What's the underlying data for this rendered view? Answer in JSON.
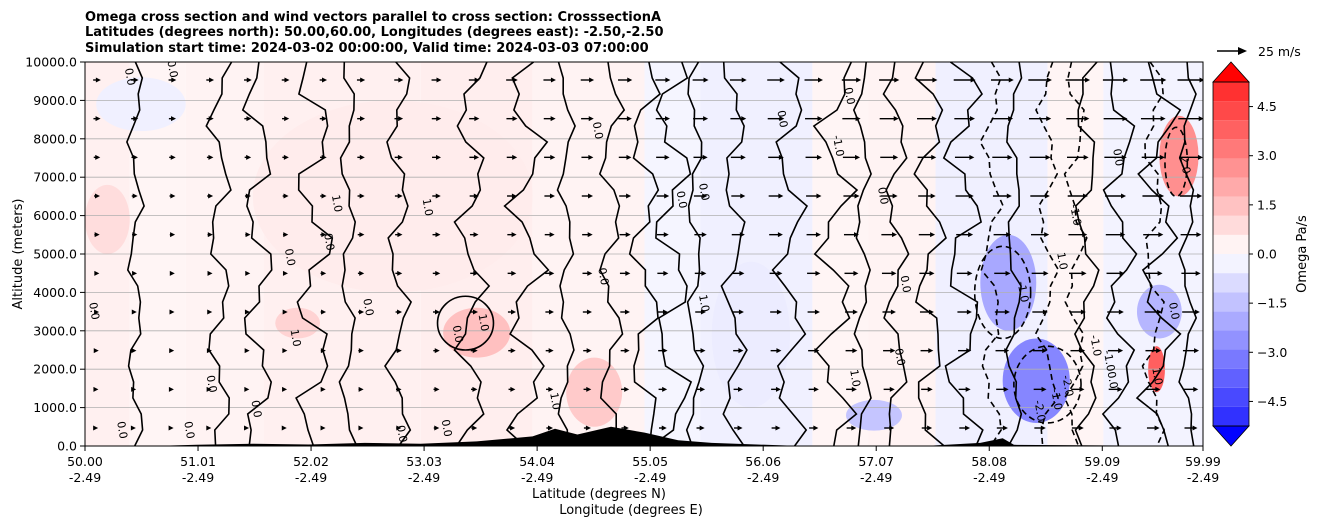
{
  "chart_data": {
    "type": "heatmap",
    "title_lines": [
      "Omega cross section and wind vectors parallel to cross section: CrosssectionA",
      "Latitudes (degrees north): 50.00,60.00, Longitudes (degrees east): -2.50,-2.50",
      "Simulation start time: 2024-03-02 00:00:00, Valid time: 2024-03-03 07:00:00"
    ],
    "xlabel_line1": "Latitude (degrees N)",
    "xlabel_line2": "Longitude (degrees E)",
    "ylabel": "Altitude (meters)",
    "colorbar_label": "Omega Pa/s",
    "quiver_key": "25 m/s",
    "xlim": [
      50.0,
      59.99
    ],
    "ylim": [
      0,
      10000
    ],
    "x_ticks": [
      {
        "lat": "50.00",
        "lon": "-2.49",
        "value": 50.0
      },
      {
        "lat": "51.01",
        "lon": "-2.49",
        "value": 51.01
      },
      {
        "lat": "52.02",
        "lon": "-2.49",
        "value": 52.02
      },
      {
        "lat": "53.03",
        "lon": "-2.49",
        "value": 53.03
      },
      {
        "lat": "54.04",
        "lon": "-2.49",
        "value": 54.04
      },
      {
        "lat": "55.05",
        "lon": "-2.49",
        "value": 55.05
      },
      {
        "lat": "56.06",
        "lon": "-2.49",
        "value": 56.06
      },
      {
        "lat": "57.07",
        "lon": "-2.49",
        "value": 57.07
      },
      {
        "lat": "58.08",
        "lon": "-2.49",
        "value": 58.08
      },
      {
        "lat": "59.09",
        "lon": "-2.49",
        "value": 59.09
      },
      {
        "lat": "59.99",
        "lon": "-2.49",
        "value": 59.99
      }
    ],
    "y_ticks": [
      {
        "label": "0.0",
        "value": 0
      },
      {
        "label": "1000.0",
        "value": 1000
      },
      {
        "label": "2000.0",
        "value": 2000
      },
      {
        "label": "3000.0",
        "value": 3000
      },
      {
        "label": "4000.0",
        "value": 4000
      },
      {
        "label": "5000.0",
        "value": 5000
      },
      {
        "label": "6000.0",
        "value": 6000
      },
      {
        "label": "7000.0",
        "value": 7000
      },
      {
        "label": "8000.0",
        "value": 8000
      },
      {
        "label": "9000.0",
        "value": 9000
      },
      {
        "label": "10000.0",
        "value": 10000
      }
    ],
    "colorbar_range": [
      -5.25,
      5.25
    ],
    "colorbar_ticks": [
      {
        "label": "4.5",
        "value": 4.5
      },
      {
        "label": "3.0",
        "value": 3.0
      },
      {
        "label": "1.5",
        "value": 1.5
      },
      {
        "label": "0.0",
        "value": 0.0
      },
      {
        "label": "−1.5",
        "value": -1.5
      },
      {
        "label": "−3.0",
        "value": -3.0
      },
      {
        "label": "−4.5",
        "value": -4.5
      }
    ],
    "colorbar_levels": [
      -4.5,
      -4.0,
      -3.5,
      -3.0,
      -2.5,
      -2.0,
      -1.5,
      -1.0,
      -0.5,
      0.0,
      0.5,
      1.0,
      1.5,
      2.0,
      2.5,
      3.0,
      3.5,
      4.0,
      4.5
    ],
    "omega_regions": [
      {
        "x": [
          51.5,
          54.0
        ],
        "y": [
          4000,
          9000
        ],
        "v": 0.4
      },
      {
        "x": [
          53.2,
          53.8
        ],
        "y": [
          2300,
          3600
        ],
        "v": 1.3
      },
      {
        "x": [
          54.3,
          54.8
        ],
        "y": [
          500,
          2300
        ],
        "v": 1.1
      },
      {
        "x": [
          50.0,
          50.4
        ],
        "y": [
          5000,
          6800
        ],
        "v": 0.7
      },
      {
        "x": [
          51.7,
          52.1
        ],
        "y": [
          2800,
          3600
        ],
        "v": 0.9
      },
      {
        "x": [
          55.6,
          56.3
        ],
        "y": [
          1000,
          4800
        ],
        "v": -0.4
      },
      {
        "x": [
          58.0,
          58.5
        ],
        "y": [
          3000,
          5500
        ],
        "v": -1.8
      },
      {
        "x": [
          58.2,
          58.8
        ],
        "y": [
          600,
          2800
        ],
        "v": -2.5
      },
      {
        "x": [
          59.6,
          59.95
        ],
        "y": [
          6500,
          8600
        ],
        "v": 2.3
      },
      {
        "x": [
          59.5,
          59.65
        ],
        "y": [
          1400,
          2600
        ],
        "v": 3.3
      },
      {
        "x": [
          59.4,
          59.8
        ],
        "y": [
          2800,
          4200
        ],
        "v": -1.5
      },
      {
        "x": [
          56.8,
          57.3
        ],
        "y": [
          400,
          1200
        ],
        "v": -1.2
      },
      {
        "x": [
          50.1,
          50.9
        ],
        "y": [
          8200,
          9600
        ],
        "v": -0.3
      }
    ],
    "contour_labels": [
      {
        "text": "0.0",
        "x": 50.37,
        "y": 9600
      },
      {
        "text": "0.0",
        "x": 50.75,
        "y": 9800
      },
      {
        "text": "1.0",
        "x": 53.03,
        "y": 6200
      },
      {
        "text": "1.0",
        "x": 53.53,
        "y": 3200
      },
      {
        "text": "1.0",
        "x": 54.17,
        "y": 1150
      },
      {
        "text": "1.0",
        "x": 55.5,
        "y": 3700
      },
      {
        "text": "0.0",
        "x": 55.3,
        "y": 6400
      },
      {
        "text": "0.0",
        "x": 56.2,
        "y": 8500
      },
      {
        "text": "-1.0",
        "x": 56.7,
        "y": 7800
      },
      {
        "text": "0.0",
        "x": 57.1,
        "y": 6500
      },
      {
        "text": "-1.0",
        "x": 58.35,
        "y": 4000
      },
      {
        "text": "-2.0",
        "x": 58.5,
        "y": 900
      },
      {
        "text": "-2.0",
        "x": 58.75,
        "y": 1550
      },
      {
        "text": "-1.0",
        "x": 58.65,
        "y": 1200
      },
      {
        "text": "-1.0",
        "x": 59.0,
        "y": 2600
      },
      {
        "text": "-1.0",
        "x": 59.12,
        "y": 2200
      },
      {
        "text": "1.0",
        "x": 59.55,
        "y": 1800
      },
      {
        "text": "2.0",
        "x": 59.8,
        "y": 7300
      },
      {
        "text": "-1.0",
        "x": 58.82,
        "y": 6000
      },
      {
        "text": "1.0",
        "x": 58.7,
        "y": 4800
      },
      {
        "text": "0.0",
        "x": 51.8,
        "y": 4900
      },
      {
        "text": "0.0",
        "x": 52.15,
        "y": 5300
      },
      {
        "text": "1.0",
        "x": 52.22,
        "y": 6300
      },
      {
        "text": "0.0",
        "x": 53.3,
        "y": 2900
      },
      {
        "text": "0.0",
        "x": 52.5,
        "y": 3600
      },
      {
        "text": "1.0",
        "x": 51.85,
        "y": 2800
      },
      {
        "text": "0.0",
        "x": 51.1,
        "y": 1600
      },
      {
        "text": "0.0",
        "x": 51.5,
        "y": 950
      },
      {
        "text": "0.0",
        "x": 50.3,
        "y": 400
      },
      {
        "text": "0.0",
        "x": 50.9,
        "y": 400
      },
      {
        "text": "0.0",
        "x": 52.8,
        "y": 300
      },
      {
        "text": "0.0",
        "x": 53.2,
        "y": 450
      },
      {
        "text": "0.0",
        "x": 54.55,
        "y": 8200
      },
      {
        "text": "0.0",
        "x": 55.5,
        "y": 6600
      },
      {
        "text": "0.0",
        "x": 56.8,
        "y": 9100
      },
      {
        "text": "0.0",
        "x": 57.3,
        "y": 4200
      },
      {
        "text": "0.0",
        "x": 57.25,
        "y": 2300
      },
      {
        "text": "1.0",
        "x": 56.85,
        "y": 1750
      },
      {
        "text": "0.0",
        "x": 59.15,
        "y": 1700
      },
      {
        "text": "0.0",
        "x": 59.2,
        "y": 7500
      },
      {
        "text": "0.0",
        "x": 59.7,
        "y": 3500
      },
      {
        "text": "0.0",
        "x": 50.05,
        "y": 3500
      },
      {
        "text": "0.0",
        "x": 54.6,
        "y": 4400
      }
    ]
  }
}
